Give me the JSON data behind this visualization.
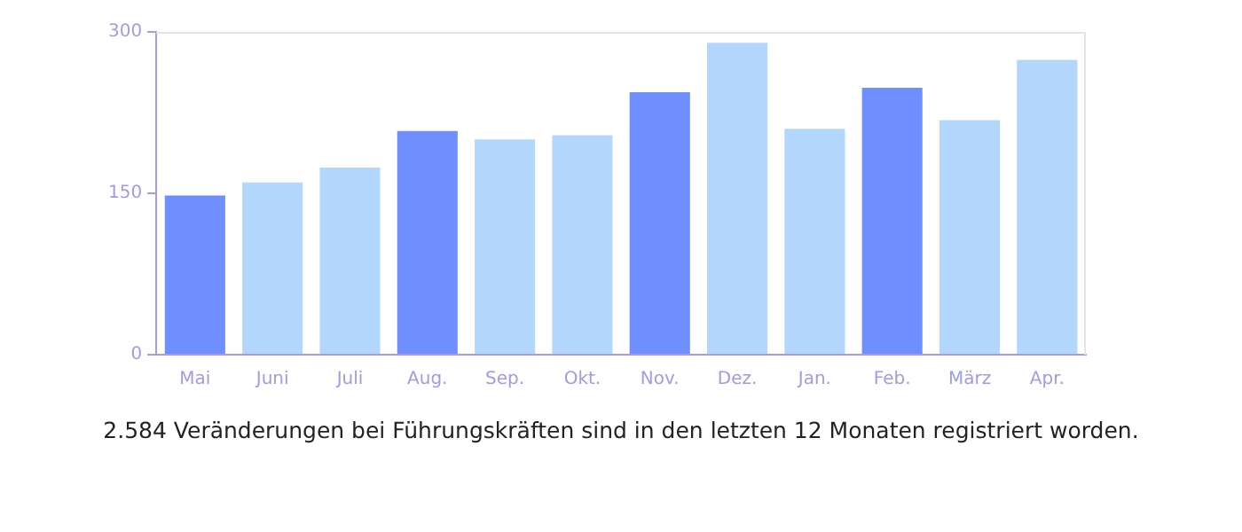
{
  "chart_data": {
    "type": "bar",
    "categories": [
      "Mai",
      "Juni",
      "Juli",
      "Aug.",
      "Sep.",
      "Okt.",
      "Nov.",
      "Dez.",
      "Jan.",
      "Feb.",
      "März",
      "Apr."
    ],
    "values": [
      148,
      160,
      174,
      208,
      200,
      204,
      244,
      290,
      210,
      248,
      218,
      274
    ],
    "colors": [
      "#6f8fff",
      "#b3d7fc",
      "#b3d7fc",
      "#6f8fff",
      "#b3d7fc",
      "#b3d7fc",
      "#6f8fff",
      "#b3d7fc",
      "#b3d7fc",
      "#6f8fff",
      "#b3d7fc",
      "#b3d7fc"
    ],
    "ylim": [
      0,
      300
    ],
    "yticks": [
      0,
      150,
      300
    ],
    "grid": false,
    "legend": false,
    "annotations": [
      "2.584 Veränderungen bei Führungskräften sind in den letzten 12 Monaten registriert worden."
    ]
  }
}
